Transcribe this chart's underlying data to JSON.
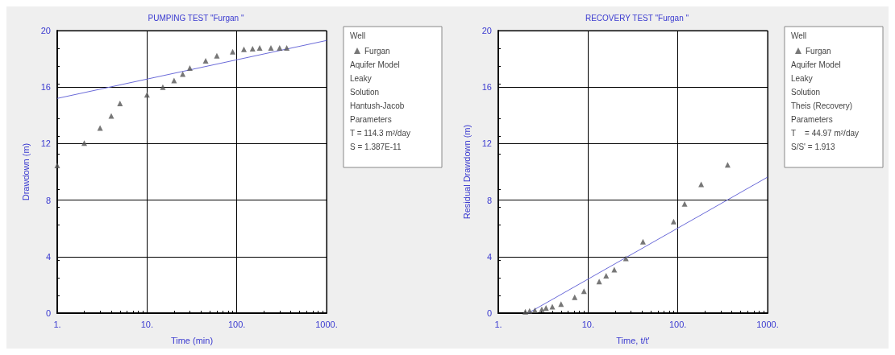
{
  "chart_data": [
    {
      "type": "scatter",
      "title": "PUMPING TEST \"Furgan \"",
      "xlabel": "Time (min)",
      "ylabel": "Drawdown (m)",
      "log": "x",
      "grid": true,
      "legend": "top right",
      "xlim": [
        1,
        1000
      ],
      "xticks": [
        {
          "value": 1,
          "label": "1."
        },
        {
          "value": 10,
          "label": "10."
        },
        {
          "value": 100,
          "label": "100."
        },
        {
          "value": 1000,
          "label": "1000."
        }
      ],
      "ylim": [
        0,
        20
      ],
      "yticks": [
        0,
        4,
        8,
        12,
        16,
        20
      ],
      "series": [
        {
          "name": "Furgan",
          "color": "#555555",
          "marker": "triangle",
          "x": [
            1,
            2,
            3,
            4,
            5,
            10,
            15,
            20,
            25,
            30,
            45,
            60,
            90,
            120,
            150,
            180,
            240,
            300,
            360
          ],
          "values": [
            10.45,
            12.04,
            13.1,
            13.96,
            14.84,
            15.46,
            16.0,
            16.47,
            16.93,
            17.35,
            17.86,
            18.22,
            18.5,
            18.68,
            18.72,
            18.77,
            18.77,
            18.77,
            18.77
          ]
        },
        {
          "type": "line",
          "color": "#6a6ad8",
          "marker": "none",
          "line_style": "solid",
          "x": [
            1,
            1000
          ],
          "values": [
            15.2,
            19.3
          ]
        }
      ],
      "annotations": [
        "Well",
        "Aquifer Model",
        "Leaky",
        "Solution",
        "Hantush-Jacob",
        "Parameters",
        "T = 114.3 m²/day",
        "S = 1.387E-11"
      ]
    },
    {
      "type": "scatter",
      "title": "RECOVERY TEST \"Furgan \"",
      "xlabel": "Time, t/t'",
      "ylabel": "Residual Drawdown (m)",
      "log": "x",
      "grid": true,
      "legend": "top right",
      "xlim": [
        1,
        1000
      ],
      "xticks": [
        {
          "value": 1,
          "label": "1."
        },
        {
          "value": 10,
          "label": "10."
        },
        {
          "value": 100,
          "label": "100."
        },
        {
          "value": 1000,
          "label": "1000."
        }
      ],
      "ylim": [
        0,
        20
      ],
      "yticks": [
        0,
        4,
        8,
        12,
        16,
        20
      ],
      "series": [
        {
          "name": "Furgan",
          "color": "#555555",
          "marker": "triangle",
          "x": [
            2.0,
            2.23,
            2.56,
            3.05,
            3.4,
            4.0,
            5.0,
            7.1,
            9.0,
            13.3,
            15.9,
            19.6,
            26.4,
            40.9,
            89.8,
            119,
            182,
            359
          ],
          "values": [
            0.1,
            0.15,
            0.2,
            0.27,
            0.37,
            0.46,
            0.64,
            1.13,
            1.55,
            2.23,
            2.65,
            3.07,
            3.87,
            5.06,
            6.48,
            7.73,
            9.11,
            10.5
          ]
        },
        {
          "type": "line",
          "color": "#6a6ad8",
          "marker": "none",
          "line_style": "solid",
          "x": [
            2.15,
            1000
          ],
          "values": [
            0,
            9.63
          ]
        }
      ],
      "annotations": [
        "Well",
        "Aquifer Model",
        "Leaky",
        "Solution",
        "Theis (Recovery)",
        "Parameters",
        "T    = 44.97 m²/day",
        "S/S' = 1.913"
      ]
    }
  ]
}
